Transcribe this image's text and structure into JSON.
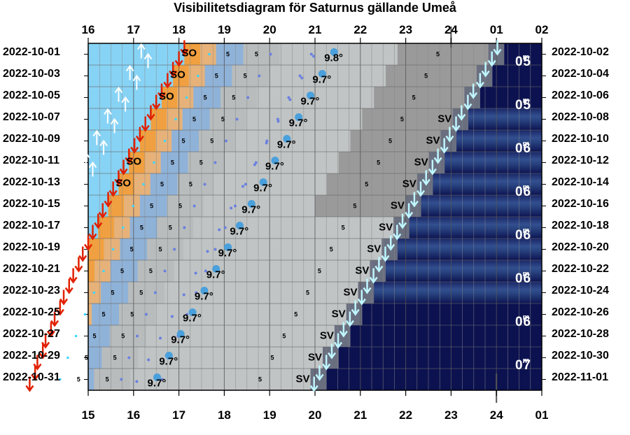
{
  "title": "Visibilitetsdiagram för Saturnus gällande Umeå",
  "colors": {
    "day": "#87d3f5",
    "twilight_orange": "#f0a040",
    "night_dark": "#0c1250",
    "gray_light": "#c0c4c4",
    "gray_mid": "#9a9a9a",
    "planet_dot": "#4aa0dc",
    "sunset_arrow": "#e02000",
    "cyan_arrow": "#bff6ff"
  },
  "chart_data": {
    "type": "heatmap",
    "x_axis_top_labels": [
      "16",
      "17",
      "18",
      "19",
      "20",
      "21",
      "22",
      "23",
      "24",
      "01",
      "02"
    ],
    "x_axis_bottom_labels": [
      "15",
      "16",
      "17",
      "18",
      "19",
      "20",
      "21",
      "22",
      "23",
      "24",
      "01"
    ],
    "x_range_top_hours": [
      16,
      26
    ],
    "x_range_bottom_hours": [
      15,
      25
    ],
    "left_dates": [
      "2022-10-01",
      "2022-10-03",
      "2022-10-05",
      "2022-10-07",
      "2022-10-09",
      "2022-10-11",
      "2022-10-13",
      "2022-10-15",
      "2022-10-17",
      "2022-10-19",
      "2022-10-21",
      "2022-10-23",
      "2022-10-25",
      "2022-10-27",
      "2022-10-29",
      "2022-10-31"
    ],
    "right_dates": [
      "2022-10-02",
      "2022-10-04",
      "2022-10-06",
      "2022-10-08",
      "2022-10-10",
      "2022-10-12",
      "2022-10-14",
      "2022-10-16",
      "2022-10-18",
      "2022-10-20",
      "2022-10-22",
      "2022-10-24",
      "2022-10-26",
      "2022-10-28",
      "2022-10-30",
      "2022-11-01"
    ],
    "altitude_labels": [
      "9.8°",
      "9.7°",
      "9.7°",
      "9.7°",
      "9.7°",
      "9.7°",
      "9.7°",
      "9.7°",
      "9.7°",
      "9.7°",
      "9.7°",
      "9.7°",
      "9.7°",
      "9.7°",
      "9.7°",
      "9.7°"
    ],
    "magnitude_labels": [
      "0.5",
      "0.5",
      "0.6",
      "0.6",
      "0.6",
      "0.6",
      "0.6",
      "0.7"
    ],
    "magnitude_unit": "m",
    "sunset_label": "SO",
    "setting_label": "SV",
    "setting_rows": [
      3,
      4,
      5,
      6,
      7,
      8,
      9,
      10,
      11,
      12,
      13,
      14,
      15
    ],
    "sunset_label_rows": [
      0,
      1,
      2,
      5,
      6
    ],
    "marker_five": "5",
    "sunset_hours": [
      17.12,
      16.87,
      16.62,
      16.38,
      16.14,
      15.9,
      15.67,
      15.44,
      15.22,
      15.0,
      14.79,
      14.58,
      14.38,
      14.18,
      14.0,
      13.83
    ],
    "saturn_transit_hours": [
      21.42,
      21.16,
      20.9,
      20.64,
      20.38,
      20.12,
      19.86,
      19.6,
      19.34,
      19.08,
      18.82,
      18.56,
      18.3,
      18.04,
      17.78,
      17.52
    ],
    "saturn_set_hours": [
      24.02,
      23.76,
      23.49,
      23.23,
      22.97,
      22.71,
      22.45,
      22.19,
      21.93,
      21.67,
      21.41,
      21.15,
      20.89,
      20.63,
      20.37,
      20.1
    ]
  }
}
